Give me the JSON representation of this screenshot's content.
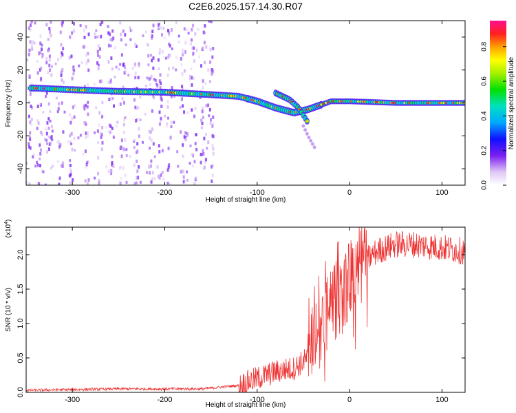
{
  "chart_data": [
    {
      "type": "heatmap",
      "title": "C2E6.2025.157.14.30.R07",
      "xlabel": "Height of straight line (km)",
      "ylabel": "Frequency (Hz)",
      "xlim": [
        -350,
        125
      ],
      "ylim": [
        -50,
        50
      ],
      "x_ticks": [
        -300,
        -200,
        -100,
        0,
        100
      ],
      "y_ticks": [
        -40,
        -20,
        0,
        20,
        40
      ],
      "colorbar": {
        "label": "Normalized spectral amplitude",
        "range": [
          0,
          0.95
        ],
        "ticks": [
          0.0,
          0.2,
          0.4,
          0.6,
          0.8
        ]
      },
      "features": {
        "main_ridge": [
          {
            "x": -340,
            "y": 9
          },
          {
            "x": -300,
            "y": 8
          },
          {
            "x": -250,
            "y": 7
          },
          {
            "x": -200,
            "y": 6.5
          },
          {
            "x": -150,
            "y": 5
          },
          {
            "x": -120,
            "y": 4
          },
          {
            "x": -100,
            "y": 1
          },
          {
            "x": -80,
            "y": -3
          },
          {
            "x": -60,
            "y": -6
          },
          {
            "x": -45,
            "y": -4
          },
          {
            "x": -30,
            "y": -1
          },
          {
            "x": -20,
            "y": 1
          },
          {
            "x": 0,
            "y": 1
          },
          {
            "x": 50,
            "y": 0
          },
          {
            "x": 125,
            "y": 0
          }
        ],
        "branch": [
          {
            "x": -80,
            "y": 6
          },
          {
            "x": -65,
            "y": 2
          },
          {
            "x": -55,
            "y": -3
          },
          {
            "x": -45,
            "y": -12
          }
        ],
        "faint_tail": [
          {
            "x": -50,
            "y": -14
          },
          {
            "x": -45,
            "y": -20
          },
          {
            "x": -38,
            "y": -27
          }
        ],
        "noise_columns_x": [
          -345,
          -335,
          -325,
          -312,
          -300,
          -285,
          -270,
          -258,
          -245,
          -230,
          -215,
          -205,
          -195,
          -180,
          -168,
          -158,
          -150
        ]
      }
    },
    {
      "type": "line",
      "xlabel": "Height of straight line (km)",
      "ylabel": "SNR (10 * v/v)",
      "y_scale_label": "(x10",
      "y_scale_exponent": "4",
      "xlim": [
        -350,
        125
      ],
      "ylim": [
        0,
        2.4
      ],
      "x_ticks": [
        -300,
        -200,
        -100,
        0,
        100
      ],
      "y_ticks": [
        0.0,
        0.5,
        1.0,
        1.5,
        2.0
      ],
      "y_tick_labels": [
        "0.0",
        "0.5",
        "1.0",
        "1.5",
        "2.0"
      ],
      "series": [
        {
          "color": "#ee3333",
          "envelope": [
            {
              "x": -350,
              "y": 0.03
            },
            {
              "x": -300,
              "y": 0.04
            },
            {
              "x": -250,
              "y": 0.05
            },
            {
              "x": -200,
              "y": 0.05
            },
            {
              "x": -160,
              "y": 0.05
            },
            {
              "x": -120,
              "y": 0.1
            },
            {
              "x": -100,
              "y": 0.2
            },
            {
              "x": -80,
              "y": 0.3
            },
            {
              "x": -60,
              "y": 0.35
            },
            {
              "x": -45,
              "y": 0.5
            },
            {
              "x": -35,
              "y": 0.8
            },
            {
              "x": -25,
              "y": 1.1
            },
            {
              "x": -15,
              "y": 1.3
            },
            {
              "x": -5,
              "y": 1.5
            },
            {
              "x": 5,
              "y": 1.75
            },
            {
              "x": 15,
              "y": 1.9
            },
            {
              "x": 30,
              "y": 2.05
            },
            {
              "x": 50,
              "y": 2.15
            },
            {
              "x": 70,
              "y": 2.15
            },
            {
              "x": 100,
              "y": 2.1
            },
            {
              "x": 125,
              "y": 2.05
            }
          ]
        }
      ]
    }
  ]
}
